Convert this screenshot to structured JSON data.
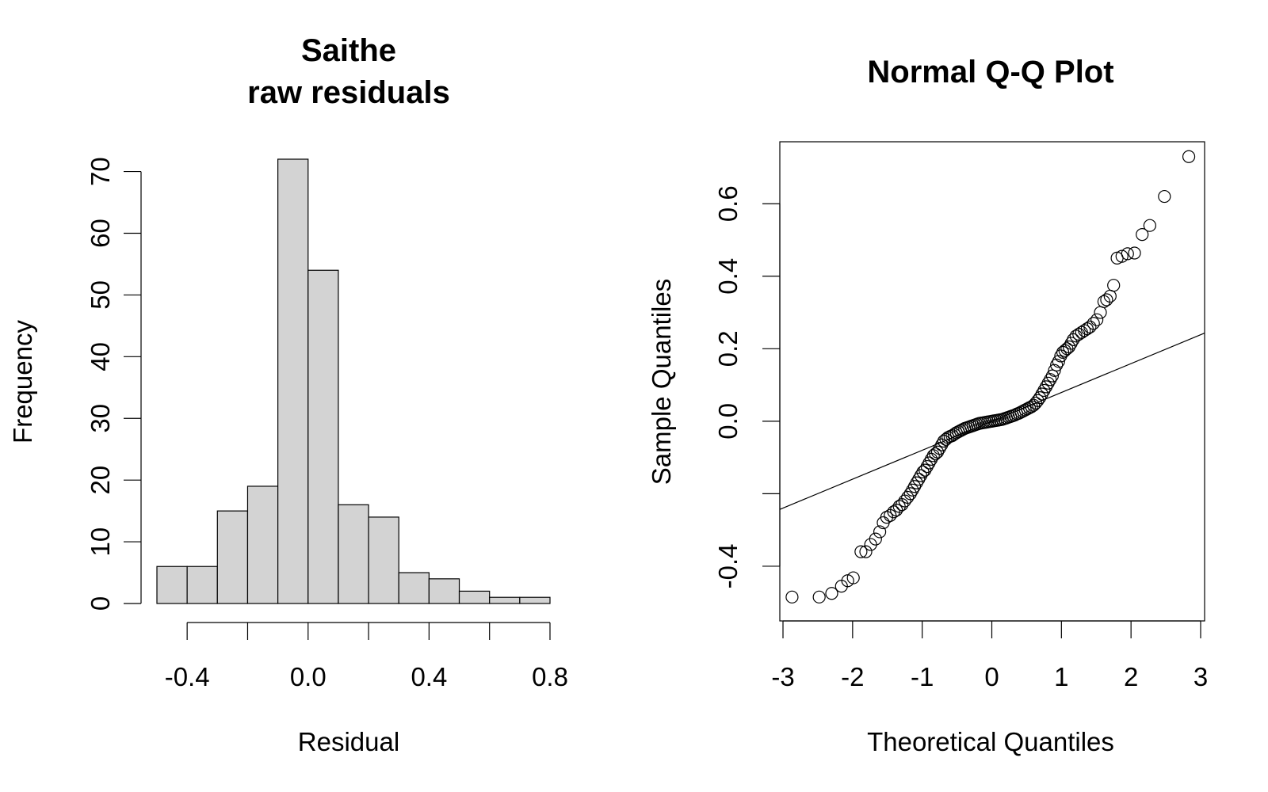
{
  "chart_data": [
    {
      "type": "bar",
      "title": "Saithe",
      "subtitle": "raw residuals",
      "xlabel": "Residual",
      "ylabel": "Frequency",
      "bin_edges": [
        -0.5,
        -0.4,
        -0.3,
        -0.2,
        -0.1,
        0.0,
        0.1,
        0.2,
        0.3,
        0.4,
        0.5,
        0.6,
        0.7,
        0.8
      ],
      "values": [
        6,
        6,
        15,
        19,
        72,
        54,
        16,
        14,
        5,
        4,
        2,
        1,
        1
      ],
      "xlim": [
        -0.5,
        0.8
      ],
      "ylim": [
        0,
        72
      ],
      "x_ticks": [
        "-0.4",
        "0.0",
        "0.4",
        "0.8"
      ],
      "x_tick_values": [
        -0.4,
        0.0,
        0.4,
        0.8
      ],
      "y_ticks": [
        "0",
        "10",
        "20",
        "30",
        "40",
        "50",
        "60",
        "70"
      ],
      "y_tick_values": [
        0,
        10,
        20,
        30,
        40,
        50,
        60,
        70
      ],
      "grid": false,
      "legend": "none",
      "bar_color": "#d3d3d3"
    },
    {
      "type": "scatter",
      "title": "Normal Q-Q Plot",
      "xlabel": "Theoretical Quantiles",
      "ylabel": "Sample Quantiles",
      "xlim": [
        -3,
        3
      ],
      "ylim": [
        -0.54,
        0.76
      ],
      "x_ticks": [
        "-3",
        "-2",
        "-1",
        "0",
        "1",
        "2",
        "3"
      ],
      "x_tick_values": [
        -3,
        -2,
        -1,
        0,
        1,
        2,
        3
      ],
      "y_ticks": [
        "-0.4",
        "0.0",
        "0.2",
        "0.4",
        "0.6"
      ],
      "y_tick_values": [
        -0.4,
        0.0,
        0.2,
        0.4,
        0.6
      ],
      "y_minor_ticks": [
        -0.2
      ],
      "grid": false,
      "legend": "none",
      "reference_line": {
        "intercept": 0.0,
        "slope": 0.08
      },
      "points": [
        [
          -2.87,
          -0.485
        ],
        [
          -2.48,
          -0.485
        ],
        [
          -2.3,
          -0.475
        ],
        [
          -2.16,
          -0.455
        ],
        [
          -2.07,
          -0.44
        ],
        [
          -1.99,
          -0.432
        ],
        [
          -1.88,
          -0.36
        ],
        [
          -1.81,
          -0.36
        ],
        [
          -1.74,
          -0.34
        ],
        [
          -1.67,
          -0.325
        ],
        [
          -1.61,
          -0.305
        ],
        [
          -1.56,
          -0.28
        ],
        [
          -1.51,
          -0.265
        ],
        [
          -1.46,
          -0.26
        ],
        [
          -1.41,
          -0.25
        ],
        [
          -1.37,
          -0.245
        ],
        [
          -1.33,
          -0.235
        ],
        [
          -1.29,
          -0.23
        ],
        [
          -1.25,
          -0.22
        ],
        [
          -1.21,
          -0.21
        ],
        [
          -1.17,
          -0.2
        ],
        [
          -1.14,
          -0.19
        ],
        [
          -1.11,
          -0.18
        ],
        [
          -1.08,
          -0.17
        ],
        [
          -1.05,
          -0.16
        ],
        [
          -1.02,
          -0.15
        ],
        [
          -0.99,
          -0.14
        ],
        [
          -0.96,
          -0.135
        ],
        [
          -0.93,
          -0.125
        ],
        [
          -0.9,
          -0.115
        ],
        [
          -0.87,
          -0.105
        ],
        [
          -0.84,
          -0.095
        ],
        [
          -0.81,
          -0.09
        ],
        [
          -0.78,
          -0.085
        ],
        [
          -0.75,
          -0.075
        ],
        [
          -0.72,
          -0.065
        ],
        [
          -0.69,
          -0.055
        ],
        [
          -0.66,
          -0.05
        ],
        [
          -0.63,
          -0.045
        ],
        [
          -0.6,
          -0.042
        ],
        [
          -0.57,
          -0.04
        ],
        [
          -0.54,
          -0.036
        ],
        [
          -0.51,
          -0.032
        ],
        [
          -0.48,
          -0.029
        ],
        [
          -0.45,
          -0.026
        ],
        [
          -0.42,
          -0.023
        ],
        [
          -0.39,
          -0.02
        ],
        [
          -0.36,
          -0.018
        ],
        [
          -0.33,
          -0.016
        ],
        [
          -0.3,
          -0.014
        ],
        [
          -0.27,
          -0.012
        ],
        [
          -0.24,
          -0.01
        ],
        [
          -0.21,
          -0.008
        ],
        [
          -0.18,
          -0.006
        ],
        [
          -0.15,
          -0.005
        ],
        [
          -0.12,
          -0.004
        ],
        [
          -0.09,
          -0.003
        ],
        [
          -0.06,
          -0.002
        ],
        [
          -0.03,
          -0.001
        ],
        [
          0.0,
          0.0
        ],
        [
          0.03,
          0.001
        ],
        [
          0.06,
          0.002
        ],
        [
          0.09,
          0.003
        ],
        [
          0.12,
          0.004
        ],
        [
          0.15,
          0.005
        ],
        [
          0.18,
          0.007
        ],
        [
          0.21,
          0.009
        ],
        [
          0.24,
          0.011
        ],
        [
          0.27,
          0.013
        ],
        [
          0.3,
          0.015
        ],
        [
          0.33,
          0.017
        ],
        [
          0.36,
          0.02
        ],
        [
          0.39,
          0.022
        ],
        [
          0.42,
          0.025
        ],
        [
          0.45,
          0.028
        ],
        [
          0.48,
          0.031
        ],
        [
          0.51,
          0.034
        ],
        [
          0.54,
          0.037
        ],
        [
          0.57,
          0.04
        ],
        [
          0.6,
          0.044
        ],
        [
          0.63,
          0.05
        ],
        [
          0.66,
          0.057
        ],
        [
          0.69,
          0.065
        ],
        [
          0.72,
          0.075
        ],
        [
          0.75,
          0.085
        ],
        [
          0.78,
          0.095
        ],
        [
          0.81,
          0.105
        ],
        [
          0.84,
          0.115
        ],
        [
          0.87,
          0.125
        ],
        [
          0.9,
          0.14
        ],
        [
          0.93,
          0.155
        ],
        [
          0.96,
          0.165
        ],
        [
          0.99,
          0.18
        ],
        [
          1.02,
          0.19
        ],
        [
          1.05,
          0.195
        ],
        [
          1.08,
          0.2
        ],
        [
          1.11,
          0.205
        ],
        [
          1.14,
          0.215
        ],
        [
          1.17,
          0.225
        ],
        [
          1.21,
          0.235
        ],
        [
          1.25,
          0.24
        ],
        [
          1.29,
          0.245
        ],
        [
          1.33,
          0.25
        ],
        [
          1.37,
          0.255
        ],
        [
          1.41,
          0.26
        ],
        [
          1.46,
          0.27
        ],
        [
          1.51,
          0.28
        ],
        [
          1.56,
          0.3
        ],
        [
          1.61,
          0.33
        ],
        [
          1.65,
          0.335
        ],
        [
          1.7,
          0.345
        ],
        [
          1.75,
          0.375
        ],
        [
          1.8,
          0.45
        ],
        [
          1.87,
          0.455
        ],
        [
          1.95,
          0.462
        ],
        [
          2.05,
          0.464
        ],
        [
          2.16,
          0.515
        ],
        [
          2.27,
          0.54
        ],
        [
          2.48,
          0.62
        ],
        [
          2.83,
          0.73
        ]
      ]
    }
  ]
}
